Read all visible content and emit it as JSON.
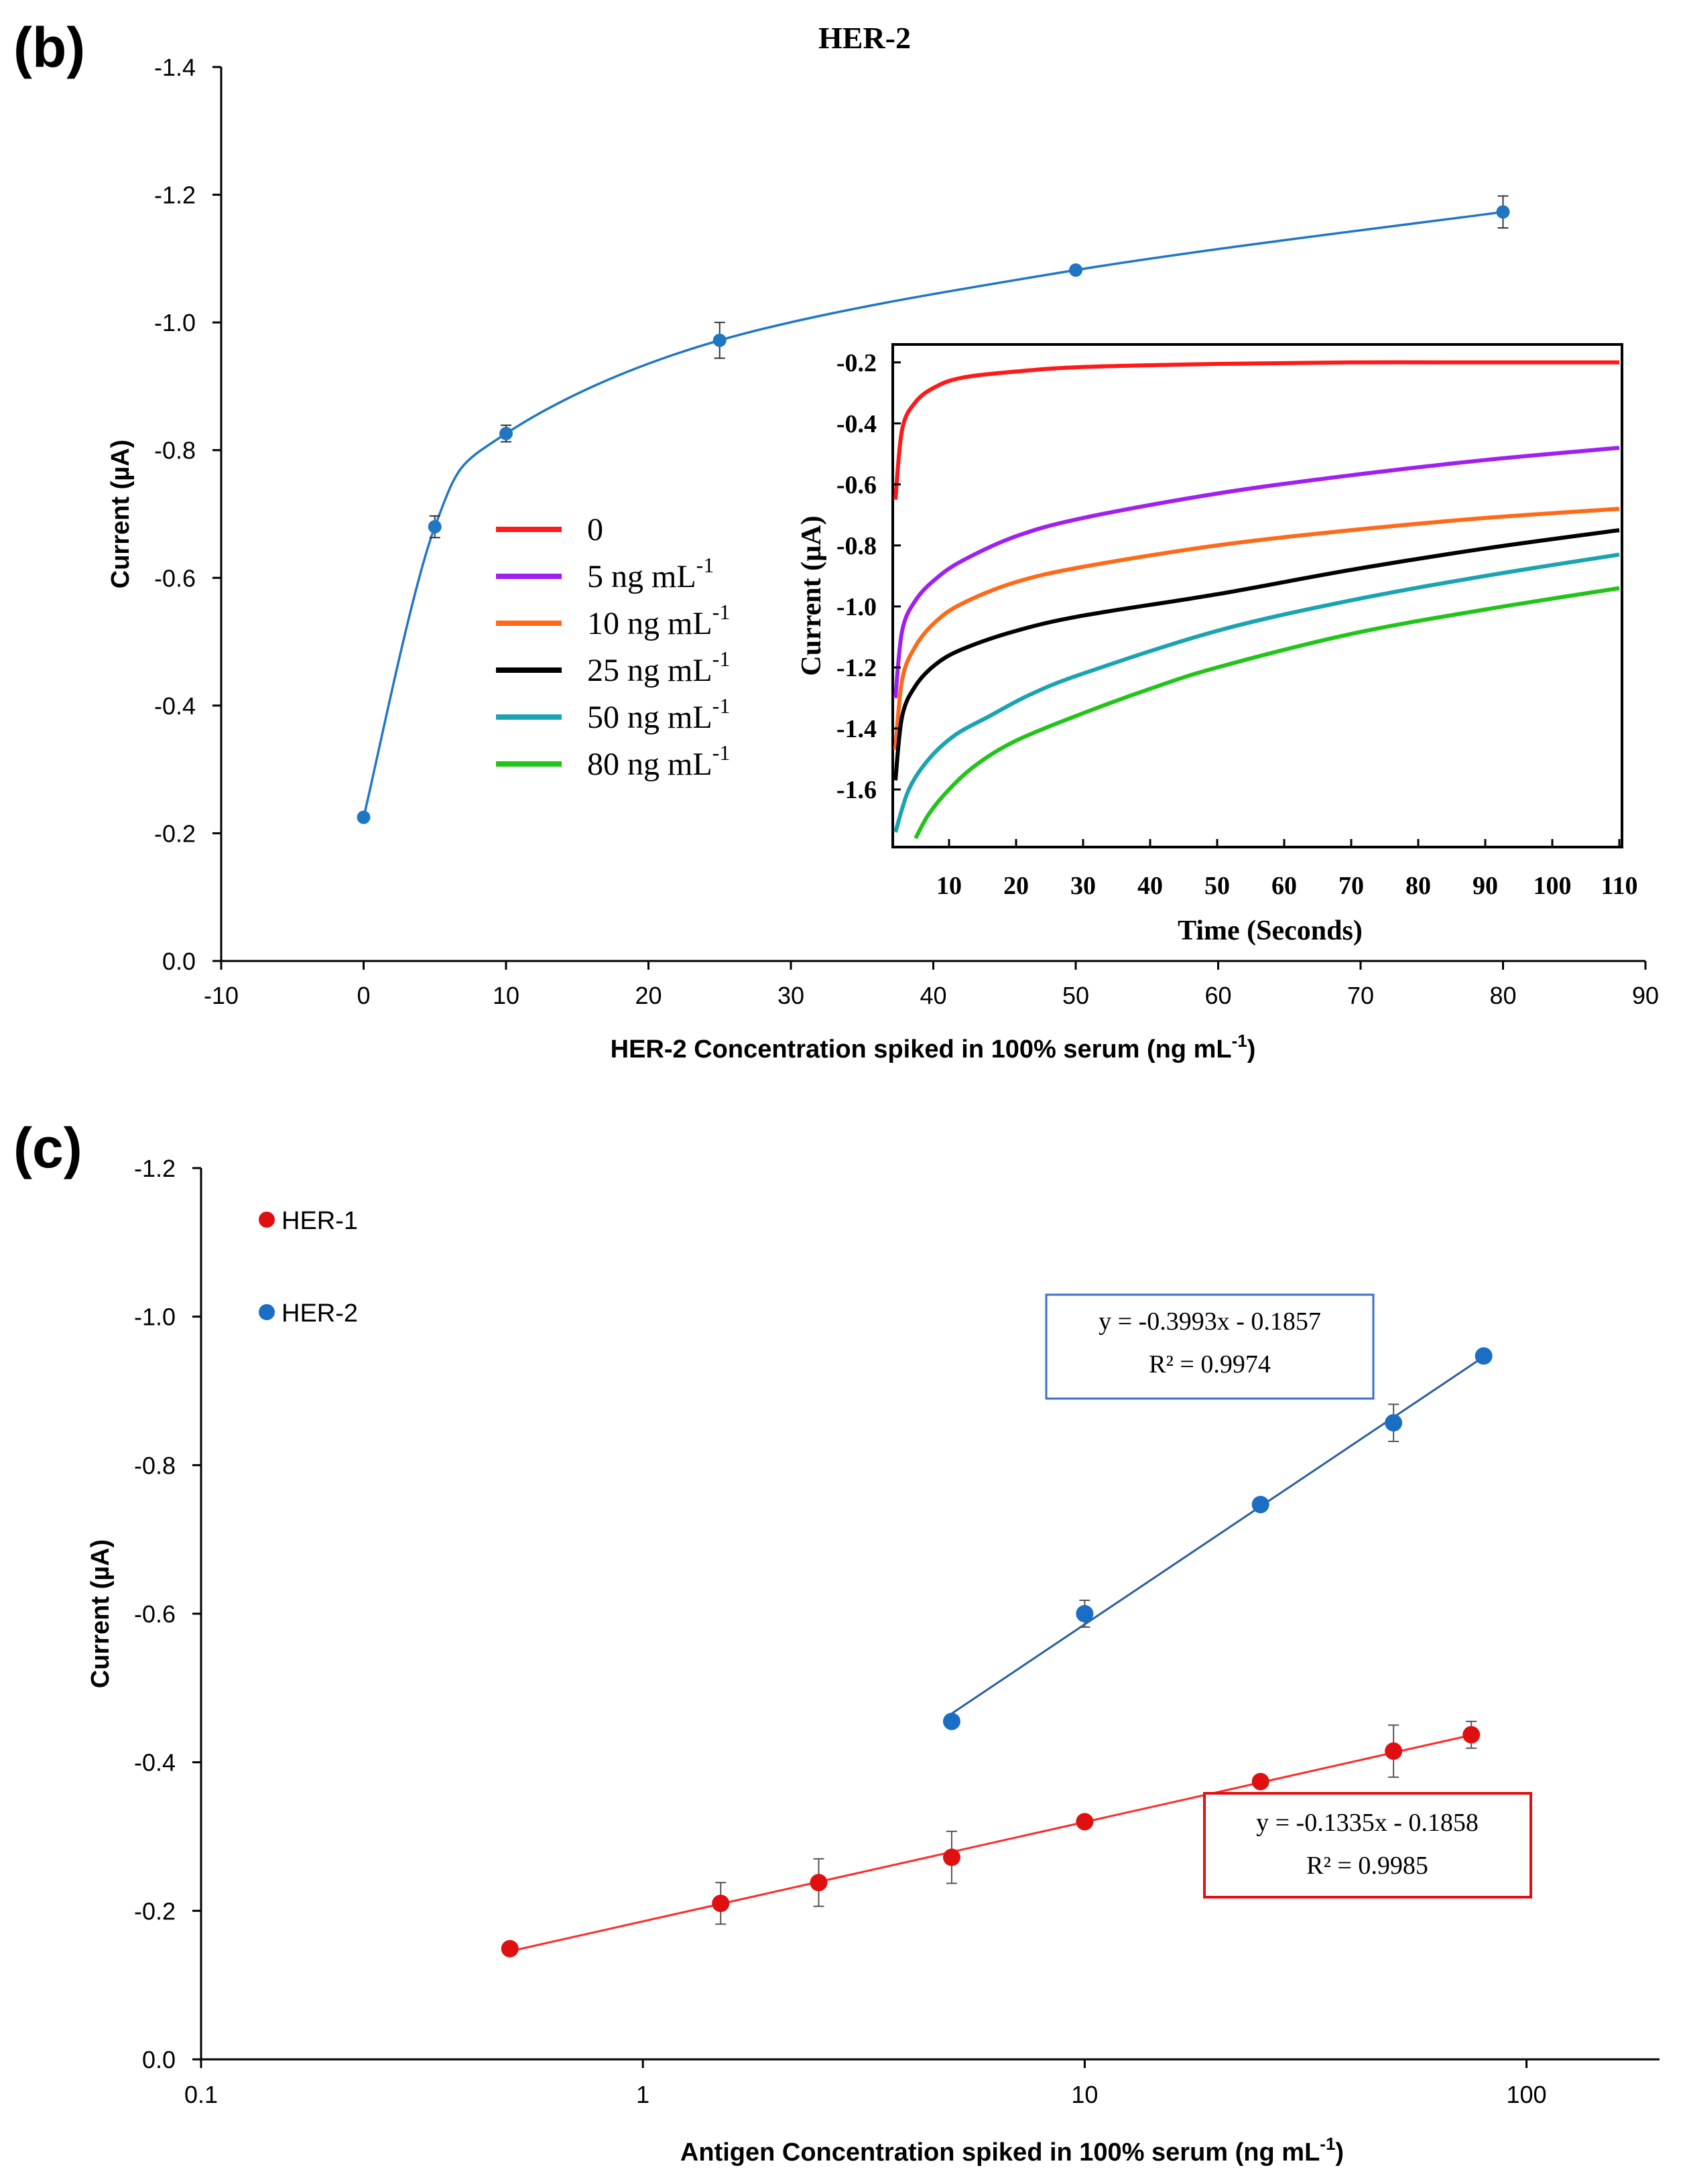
{
  "chart_data": [
    {
      "panel": "(b)",
      "type": "line",
      "title": "HER-2",
      "xlabel": "HER-2 Concentration spiked in 100% serum (ng mL",
      "xlabel_sup": "-1",
      "xlabel_end": ")",
      "ylabel": "Current (µA)",
      "xlim": [
        -10,
        90
      ],
      "ylim": [
        0.0,
        -1.4
      ],
      "xticks": [
        "-10",
        "0",
        "10",
        "20",
        "30",
        "40",
        "50",
        "60",
        "70",
        "80",
        "90"
      ],
      "yticks": [
        "0.0",
        "-0.2",
        "-0.4",
        "-0.6",
        "-0.8",
        "-1.0",
        "-1.2",
        "-1.4"
      ],
      "series": [
        {
          "name": "HER-2",
          "color": "#1f77c4",
          "x": [
            0,
            5,
            10,
            25,
            50,
            80
          ],
          "y": [
            -0.225,
            -0.68,
            -0.826,
            -0.972,
            -1.082,
            -1.173
          ],
          "err": [
            0,
            0.017,
            0.013,
            0.028,
            0,
            0.025
          ]
        }
      ]
    },
    {
      "panel": "(b) inset",
      "type": "line",
      "title": "",
      "xlabel": "Time (Seconds)",
      "ylabel": "Current (µA)",
      "xlim": [
        2,
        110
      ],
      "ylim": [
        -1.78,
        -0.15
      ],
      "xticks": [
        "10",
        "20",
        "30",
        "40",
        "50",
        "60",
        "70",
        "80",
        "90",
        "100",
        "110"
      ],
      "yticks": [
        "-0.2",
        "-0.4",
        "-0.6",
        "-0.8",
        "-1.0",
        "-1.2",
        "-1.4",
        "-1.6"
      ],
      "legend": [
        {
          "label": "0",
          "sup": "",
          "color": "#ff1a1a"
        },
        {
          "label": "5 ng mL",
          "sup": "-1",
          "color": "#a020f0"
        },
        {
          "label": "10 ng mL",
          "sup": "-1",
          "color": "#ff6a1a"
        },
        {
          "label": "25 ng mL",
          "sup": "-1",
          "color": "#000000"
        },
        {
          "label": "50  ng mL",
          "sup": "-1",
          "color": "#1aa3b0"
        },
        {
          "label": "80  ng mL",
          "sup": "-1",
          "color": "#22c41a"
        }
      ],
      "series": [
        {
          "name": "0",
          "color": "#ff1a1a",
          "t": [
            2,
            3,
            5,
            8,
            12,
            20,
            30,
            50,
            70,
            90,
            110
          ],
          "y": [
            -0.65,
            -0.42,
            -0.33,
            -0.28,
            -0.25,
            -0.23,
            -0.215,
            -0.205,
            -0.2,
            -0.2,
            -0.2
          ]
        },
        {
          "name": "5 ng mL-1",
          "color": "#a020f0",
          "t": [
            2,
            3,
            5,
            8,
            12,
            20,
            30,
            50,
            70,
            90,
            110
          ],
          "y": [
            -1.3,
            -1.08,
            -0.98,
            -0.91,
            -0.85,
            -0.77,
            -0.71,
            -0.63,
            -0.57,
            -0.52,
            -0.48
          ]
        },
        {
          "name": "10 ng mL-1",
          "color": "#ff6a1a",
          "t": [
            2,
            3,
            5,
            8,
            12,
            20,
            30,
            50,
            70,
            90,
            110
          ],
          "y": [
            -1.47,
            -1.24,
            -1.13,
            -1.05,
            -0.99,
            -0.92,
            -0.87,
            -0.8,
            -0.75,
            -0.71,
            -0.68
          ]
        },
        {
          "name": "25 ng mL-1",
          "color": "#000000",
          "t": [
            2,
            3,
            5,
            8,
            12,
            20,
            30,
            50,
            70,
            90,
            110
          ],
          "y": [
            -1.57,
            -1.36,
            -1.26,
            -1.19,
            -1.14,
            -1.08,
            -1.03,
            -0.96,
            -0.88,
            -0.81,
            -0.75
          ]
        },
        {
          "name": "50 ng mL-1",
          "color": "#1aa3b0",
          "t": [
            2,
            4,
            7,
            11,
            16,
            22,
            30,
            50,
            70,
            90,
            110
          ],
          "y": [
            -1.74,
            -1.6,
            -1.5,
            -1.42,
            -1.36,
            -1.29,
            -1.22,
            -1.08,
            -0.98,
            -0.9,
            -0.83
          ]
        },
        {
          "name": "80 ng mL-1",
          "color": "#22c41a",
          "t": [
            5,
            7,
            10,
            14,
            20,
            30,
            40,
            50,
            70,
            90,
            110
          ],
          "y": [
            -1.76,
            -1.68,
            -1.6,
            -1.52,
            -1.44,
            -1.35,
            -1.27,
            -1.2,
            -1.09,
            -1.01,
            -0.94
          ]
        }
      ]
    },
    {
      "panel": "(c)",
      "type": "scatter",
      "title": "",
      "xscale": "log",
      "xlabel": "Antigen Concentration spiked in 100% serum (ng mL",
      "xlabel_sup": "-1",
      "xlabel_end": ")",
      "ylabel": "Current (µA)",
      "xlim": [
        0.1,
        200
      ],
      "ylim": [
        0.0,
        -1.2
      ],
      "xticks": [
        "0.1",
        "1",
        "10",
        "100"
      ],
      "yticks": [
        "0.0",
        "-0.2",
        "-0.4",
        "-0.6",
        "-0.8",
        "-1.0",
        "-1.2"
      ],
      "legend": [
        {
          "label": "HER-1",
          "color": "#e01010"
        },
        {
          "label": "HER-2",
          "color": "#1a6fc4"
        }
      ],
      "series": [
        {
          "name": "HER-1",
          "color": "#e01010",
          "x": [
            0.5,
            1.5,
            2.5,
            5,
            10,
            25,
            50,
            75
          ],
          "y": [
            -0.149,
            -0.21,
            -0.238,
            -0.272,
            -0.32,
            -0.374,
            -0.415,
            -0.437
          ],
          "err": [
            0,
            0.028,
            0.032,
            0.035,
            0,
            0,
            0.035,
            0.018
          ],
          "fit": {
            "line": "y = -0.1335x - 0.1858",
            "r2": "R² = 0.9985",
            "x_range": [
              0.5,
              75
            ],
            "line_color": "#ff2a2a"
          }
        },
        {
          "name": "HER-2",
          "color": "#1a6fc4",
          "x": [
            5,
            10,
            25,
            50,
            80
          ],
          "y": [
            -0.455,
            -0.6,
            -0.747,
            -0.857,
            -0.947
          ],
          "err": [
            0,
            0.018,
            0,
            0.025,
            0
          ],
          "fit": {
            "line": "y = -0.3993x - 0.1857",
            "r2": "R² = 0.9974",
            "x_range": [
              5,
              80
            ],
            "line_color": "#2b5f9e"
          }
        }
      ]
    }
  ]
}
